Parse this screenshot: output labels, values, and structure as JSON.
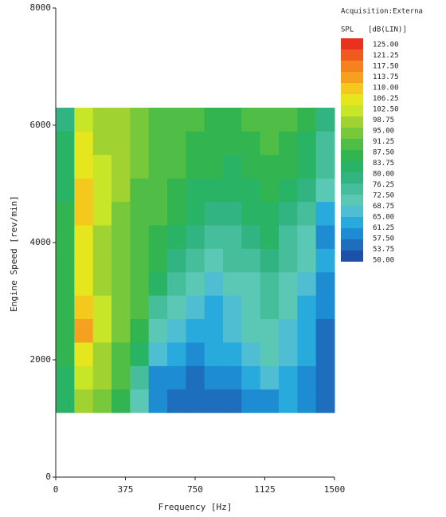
{
  "chart_data": {
    "type": "heatmap",
    "title": "Acquisition:Externa",
    "colorbar_title": "SPL",
    "colorbar_unit": "[dB(LIN)]",
    "x_label": "Frequency  [Hz]",
    "y_label": "Engine Speed  [rev/min]",
    "xlim": [
      0,
      1500
    ],
    "ylim": [
      0,
      8000
    ],
    "xticks": [
      0,
      375,
      750,
      1125,
      1500
    ],
    "yticks": [
      0,
      2000,
      4000,
      6000,
      8000
    ],
    "x_edges": [
      0,
      100,
      200,
      300,
      400,
      500,
      600,
      700,
      800,
      900,
      1000,
      1100,
      1200,
      1300,
      1400,
      1500
    ],
    "y_edges": [
      1100,
      1500,
      1900,
      2300,
      2700,
      3100,
      3500,
      3900,
      4300,
      4700,
      5100,
      5500,
      5900,
      6300
    ],
    "z": [
      [
        80,
        95,
        92,
        85,
        70,
        58,
        57,
        56,
        57,
        57,
        58,
        60,
        62,
        58,
        55
      ],
      [
        82,
        100,
        95,
        88,
        75,
        60,
        58,
        57,
        58,
        60,
        62,
        66,
        64,
        60,
        55
      ],
      [
        84,
        105,
        98,
        90,
        82,
        66,
        62,
        60,
        62,
        64,
        68,
        70,
        66,
        62,
        56
      ],
      [
        85,
        110,
        100,
        92,
        86,
        72,
        66,
        62,
        64,
        66,
        70,
        72,
        68,
        62,
        57
      ],
      [
        86,
        108,
        100,
        92,
        88,
        76,
        70,
        66,
        64,
        66,
        70,
        74,
        70,
        64,
        58
      ],
      [
        86,
        106,
        98,
        92,
        88,
        80,
        74,
        70,
        68,
        70,
        72,
        76,
        72,
        66,
        60
      ],
      [
        86,
        104,
        98,
        92,
        88,
        84,
        78,
        74,
        72,
        74,
        76,
        78,
        74,
        70,
        62
      ],
      [
        85,
        106,
        98,
        94,
        88,
        86,
        80,
        78,
        76,
        76,
        78,
        80,
        76,
        72,
        60
      ],
      [
        84,
        108,
        100,
        94,
        90,
        88,
        84,
        80,
        78,
        78,
        80,
        82,
        78,
        74,
        64
      ],
      [
        83,
        108,
        100,
        95,
        90,
        88,
        86,
        82,
        80,
        80,
        82,
        84,
        82,
        78,
        70
      ],
      [
        82,
        106,
        100,
        96,
        92,
        90,
        88,
        86,
        84,
        82,
        84,
        86,
        84,
        80,
        74
      ],
      [
        80,
        104,
        98,
        96,
        92,
        90,
        88,
        86,
        86,
        84,
        86,
        88,
        86,
        82,
        76
      ],
      [
        78,
        102,
        98,
        96,
        94,
        90,
        88,
        88,
        86,
        86,
        88,
        90,
        88,
        84,
        78
      ]
    ],
    "levels": [
      {
        "value": 125,
        "label": "125.00"
      },
      {
        "value": 121.25,
        "label": "121.25"
      },
      {
        "value": 117.5,
        "label": "117.50"
      },
      {
        "value": 113.75,
        "label": "113.75"
      },
      {
        "value": 110,
        "label": "110.00"
      },
      {
        "value": 106.25,
        "label": "106.25"
      },
      {
        "value": 102.5,
        "label": "102.50"
      },
      {
        "value": 98.75,
        "label": "98.75"
      },
      {
        "value": 95,
        "label": "95.00"
      },
      {
        "value": 91.25,
        "label": "91.25"
      },
      {
        "value": 87.5,
        "label": "87.50"
      },
      {
        "value": 83.75,
        "label": "83.75"
      },
      {
        "value": 80,
        "label": "80.00"
      },
      {
        "value": 76.25,
        "label": "76.25"
      },
      {
        "value": 72.5,
        "label": "72.50"
      },
      {
        "value": 68.75,
        "label": "68.75"
      },
      {
        "value": 65,
        "label": "65.00"
      },
      {
        "value": 61.25,
        "label": "61.25"
      },
      {
        "value": 57.5,
        "label": "57.50"
      },
      {
        "value": 53.75,
        "label": "53.75"
      },
      {
        "value": 50,
        "label": "50.00"
      }
    ],
    "colors": [
      "#e8321e",
      "#f05a1e",
      "#f5821e",
      "#f5a01e",
      "#f5c81e",
      "#e6e61e",
      "#c8e628",
      "#a0d232",
      "#78c83c",
      "#50be46",
      "#32b450",
      "#28b464",
      "#32b482",
      "#46be9b",
      "#5ac8b4",
      "#50bed2",
      "#28aadc",
      "#1e8cd2",
      "#1e6ebe",
      "#1e50aa"
    ]
  }
}
